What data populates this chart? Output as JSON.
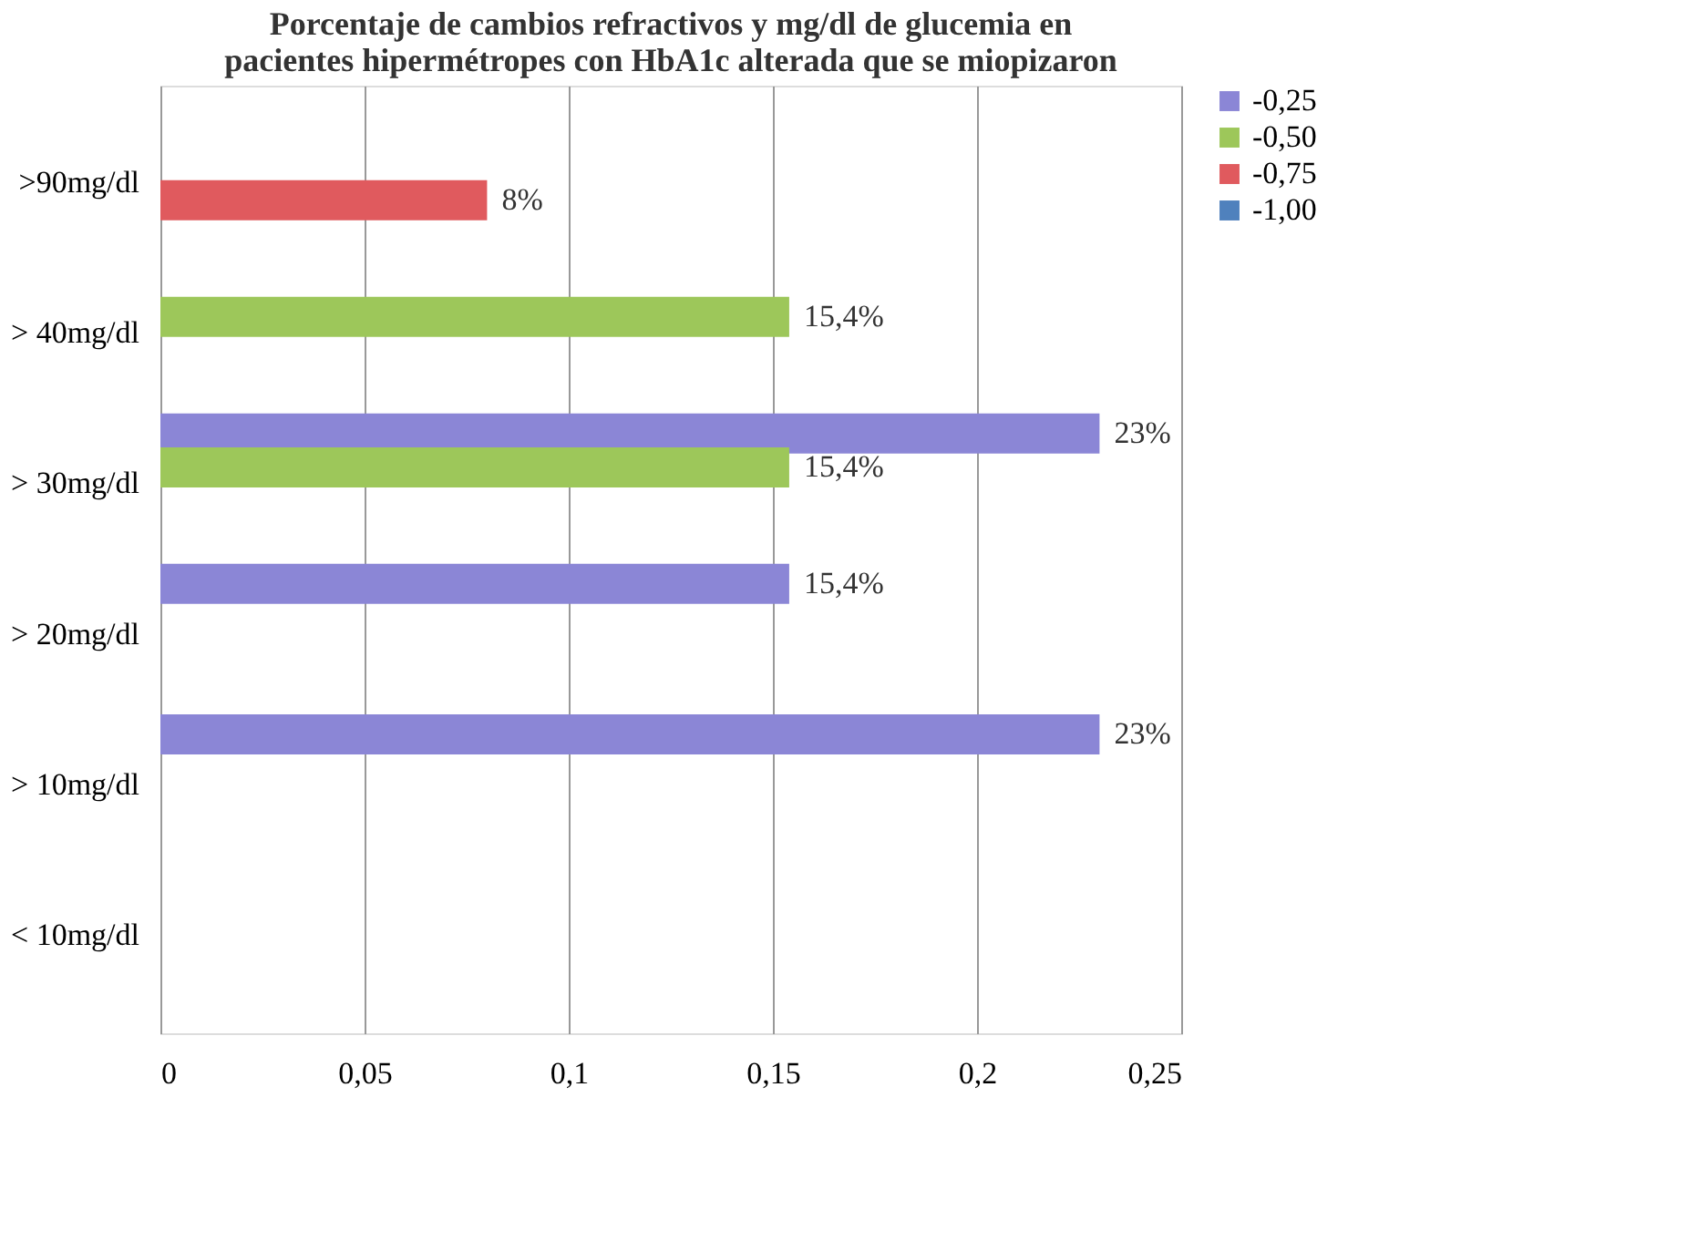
{
  "chart_data": {
    "type": "bar",
    "orientation": "horizontal",
    "title": [
      "Porcentaje  de cambios refractivos y mg/dl de glucemia en",
      "pacientes hipermétropes con HbA1c alterada que se miopizaron"
    ],
    "categories": [
      ">90mg/dl",
      "> 40mg/dl",
      "> 30mg/dl",
      "> 20mg/dl",
      "> 10mg/dl",
      "< 10mg/dl"
    ],
    "series": [
      {
        "name": "-0,25",
        "color": "#8b86d6",
        "values": [
          null,
          null,
          0.23,
          0.154,
          0.23,
          null
        ],
        "value_labels": [
          null,
          null,
          "23%",
          "15,4%",
          "23%",
          null
        ]
      },
      {
        "name": "-0,50",
        "color": "#9dc75a",
        "values": [
          null,
          0.154,
          0.154,
          null,
          null,
          null
        ],
        "value_labels": [
          null,
          "15,4%",
          "15,4%",
          null,
          null,
          null
        ]
      },
      {
        "name": "-0,75",
        "color": "#e05a5e",
        "values": [
          0.08,
          null,
          null,
          null,
          null,
          null
        ],
        "value_labels": [
          "8%",
          null,
          null,
          null,
          null,
          null
        ]
      },
      {
        "name": "-1,00",
        "color": "#4f81bd",
        "values": [
          null,
          null,
          null,
          null,
          null,
          null
        ],
        "value_labels": [
          null,
          null,
          null,
          null,
          null,
          null
        ]
      }
    ],
    "xlim": [
      0,
      0.25
    ],
    "xticks": [
      0,
      {
        "value": 0.05,
        "label": "0,05"
      },
      {
        "value": 0.1,
        "label": "0,1"
      },
      {
        "value": 0.15,
        "label": "0,15"
      },
      {
        "value": 0.2,
        "label": "0,2"
      },
      {
        "value": 0.25,
        "label": "0,25"
      }
    ],
    "grid": "x",
    "legend": "right"
  }
}
